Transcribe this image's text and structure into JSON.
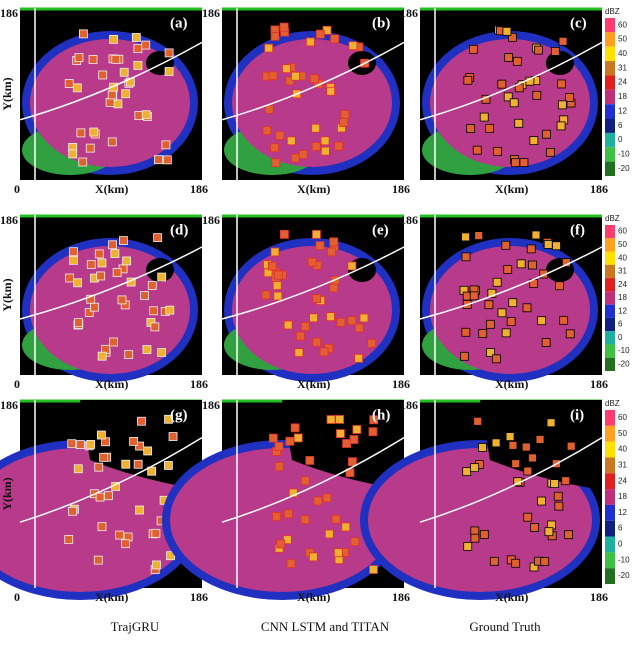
{
  "rows": [
    {
      "panels": [
        "(a)",
        "(b)",
        "(c)"
      ]
    },
    {
      "panels": [
        "(d)",
        "(e)",
        "(f)"
      ]
    },
    {
      "panels": [
        "(g)",
        "(h)",
        "(i)"
      ]
    }
  ],
  "axes": {
    "y_label": "Y(km)",
    "x_label": "X(km)",
    "origin": 0,
    "max": 186
  },
  "colorbar": {
    "unit": "dBZ",
    "ticks": [
      60,
      50,
      40,
      31,
      24,
      18,
      12,
      6,
      0,
      -10,
      -20
    ]
  },
  "captions": [
    "TrajGRU",
    "CNN  LSTM and TITAN",
    "Ground Truth"
  ]
}
